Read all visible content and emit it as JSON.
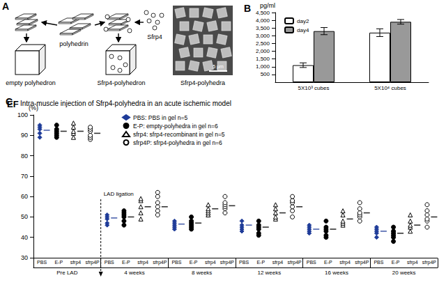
{
  "diagram": {
    "panel": "A",
    "texts": {
      "left_product": "empty polyhedron",
      "source": "polyhedrin",
      "right_product": "Sfrp4-polyhedron",
      "cargo": "Sfrp4",
      "micrograph": "Sfrp4-polyhedra",
      "scale_bar": "5 μm"
    }
  },
  "chart_data": [
    {
      "panel": "B",
      "type": "bar",
      "ylabel": "pg/ml",
      "categories": [
        "5X10³ cubes",
        "5X10⁴ cubes"
      ],
      "series": [
        {
          "name": "day2",
          "color": "#ffffff",
          "values": [
            1100,
            3200
          ],
          "errors": [
            150,
            250
          ]
        },
        {
          "name": "day4",
          "color": "#999999",
          "values": [
            3300,
            3900
          ],
          "errors": [
            230,
            150
          ]
        }
      ],
      "ylim": [
        0,
        4500
      ],
      "yticks": [
        500,
        1000,
        1500,
        2000,
        2500,
        3000,
        3500,
        4000,
        4500
      ],
      "legend": "top-left",
      "grid": false
    },
    {
      "panel": "C",
      "type": "scatter",
      "title": "Intra-muscle injection of Sfrp4-polyhedra in an acute ischemic model",
      "ylabel": "(%)",
      "annotations": [
        "EF",
        "LAD ligation"
      ],
      "categories": [
        "PBS",
        "E-P",
        "sfrp4",
        "sfrp4P"
      ],
      "groups": [
        "Pre LAD",
        "4 weeks",
        "8 weeks",
        "12 weeks",
        "16 weeks",
        "20 weeks"
      ],
      "ylim": [
        30,
        100
      ],
      "yticks": [
        30,
        40,
        50,
        60,
        70,
        80,
        90,
        100
      ],
      "legend": "top",
      "grid": false,
      "series": [
        {
          "name": "PBS: PBS in gel n=5",
          "category": "PBS",
          "color": "#1f3c99",
          "marker": "diamond",
          "values": [
            [
              89,
              91,
              93,
              94,
              95
            ],
            [
              46,
              47,
              49,
              50,
              51
            ],
            [
              44,
              45,
              46,
              47,
              48
            ],
            [
              43,
              44,
              45,
              46,
              48
            ],
            [
              42,
              43,
              44,
              45,
              46
            ],
            [
              40,
              42,
              43,
              44,
              45
            ]
          ],
          "means": [
            92.5,
            49.5,
            46.5,
            46,
            44,
            43
          ]
        },
        {
          "name": "E-P: empty-polyhedra in gel n=6",
          "category": "E-P",
          "color": "#000000",
          "marker": "circle",
          "values": [
            [
              89,
              90,
              91,
              92,
              93,
              95
            ],
            [
              46,
              48,
              50,
              51,
              52,
              53
            ],
            [
              44,
              45,
              46,
              47,
              48,
              50
            ],
            [
              41,
              42,
              44,
              45,
              46,
              48
            ],
            [
              40,
              41,
              43,
              44,
              45,
              48
            ],
            [
              38,
              40,
              41,
              42,
              43,
              45
            ]
          ],
          "means": [
            92,
            50,
            47,
            45,
            44,
            42
          ]
        },
        {
          "name": "sfrp4: sfrp4-recombinant in gel n=5",
          "category": "sfrp4",
          "color": "#000000",
          "marker": "open-triangle",
          "values": [
            [
              89,
              91,
              92,
              94,
              96
            ],
            [
              49,
              52,
              55,
              58,
              59
            ],
            [
              51,
              52,
              53,
              54,
              56
            ],
            [
              49,
              50,
              52,
              54,
              56
            ],
            [
              46,
              47,
              48,
              51,
              53
            ],
            [
              43,
              45,
              46,
              48,
              51
            ]
          ],
          "means": [
            92,
            55,
            54,
            52,
            49,
            46
          ]
        },
        {
          "name": "sfrp4P: sfrp4-polyhedra in gel n=6",
          "category": "sfrp4P",
          "color": "#000000",
          "marker": "open-circle",
          "values": [
            [
              88,
              89,
              90,
              92,
              93,
              94
            ],
            [
              51,
              53,
              55,
              57,
              60,
              62
            ],
            [
              52,
              54,
              55,
              56,
              57,
              60
            ],
            [
              50,
              53,
              55,
              57,
              58,
              60
            ],
            [
              48,
              50,
              51,
              52,
              54,
              57
            ],
            [
              45,
              48,
              49,
              51,
              53,
              56
            ]
          ],
          "means": [
            91,
            55,
            55.5,
            55,
            52,
            50
          ]
        }
      ]
    }
  ]
}
